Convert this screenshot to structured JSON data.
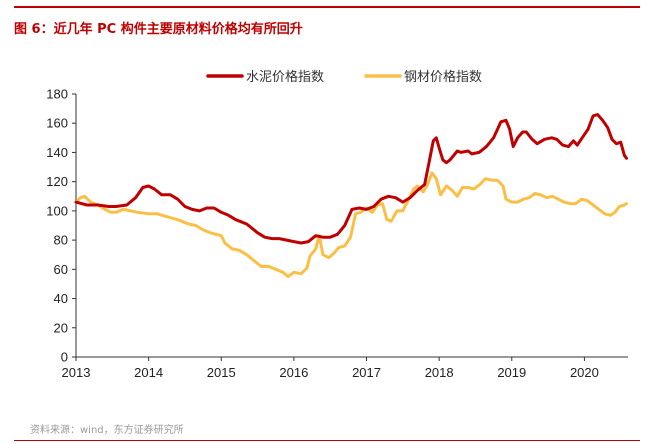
{
  "title": "图 6：近几年 PC 构件主要原材料价格均有所回升",
  "source": "资料来源：wind，东方证券研究所",
  "colors": {
    "accent": "#c00000",
    "cement": "#c00000",
    "steel": "#fbbf45",
    "axis": "#333333",
    "rule": "#c00000"
  },
  "chart_data": {
    "type": "line",
    "title": "图 6：近几年 PC 构件主要原材料价格均有所回升",
    "xlabel": "",
    "ylabel": "",
    "xlim": [
      2013,
      2020.6
    ],
    "ylim": [
      0,
      180
    ],
    "yticks": [
      0,
      20,
      40,
      60,
      80,
      100,
      120,
      140,
      160,
      180
    ],
    "xticks": [
      2013,
      2014,
      2015,
      2016,
      2017,
      2018,
      2019,
      2020
    ],
    "xtick_labels": [
      "2013",
      "2014",
      "2015",
      "2016",
      "2017",
      "2018",
      "2019",
      "2020"
    ],
    "legend_position": "top-center",
    "grid": false,
    "series": [
      {
        "name": "水泥价格指数",
        "key": "cement",
        "points": [
          [
            2013.0,
            106
          ],
          [
            2013.15,
            104
          ],
          [
            2013.3,
            104
          ],
          [
            2013.45,
            103
          ],
          [
            2013.55,
            103
          ],
          [
            2013.7,
            104
          ],
          [
            2013.82,
            109
          ],
          [
            2013.92,
            116
          ],
          [
            2014.0,
            117
          ],
          [
            2014.08,
            115
          ],
          [
            2014.18,
            111
          ],
          [
            2014.3,
            111
          ],
          [
            2014.4,
            108
          ],
          [
            2014.5,
            103
          ],
          [
            2014.6,
            101
          ],
          [
            2014.7,
            100
          ],
          [
            2014.8,
            102
          ],
          [
            2014.9,
            102
          ],
          [
            2015.0,
            99
          ],
          [
            2015.1,
            97
          ],
          [
            2015.2,
            94
          ],
          [
            2015.35,
            91
          ],
          [
            2015.5,
            85
          ],
          [
            2015.6,
            82
          ],
          [
            2015.7,
            81
          ],
          [
            2015.8,
            81
          ],
          [
            2015.9,
            80
          ],
          [
            2016.0,
            79
          ],
          [
            2016.1,
            78
          ],
          [
            2016.2,
            79
          ],
          [
            2016.3,
            83
          ],
          [
            2016.4,
            82
          ],
          [
            2016.5,
            82
          ],
          [
            2016.6,
            84
          ],
          [
            2016.7,
            90
          ],
          [
            2016.8,
            101
          ],
          [
            2016.9,
            102
          ],
          [
            2017.0,
            101
          ],
          [
            2017.1,
            103
          ],
          [
            2017.2,
            108
          ],
          [
            2017.3,
            110
          ],
          [
            2017.4,
            109
          ],
          [
            2017.5,
            106
          ],
          [
            2017.6,
            109
          ],
          [
            2017.7,
            114
          ],
          [
            2017.8,
            118
          ],
          [
            2017.86,
            133
          ],
          [
            2017.92,
            148
          ],
          [
            2017.96,
            150
          ],
          [
            2018.0,
            143
          ],
          [
            2018.05,
            135
          ],
          [
            2018.1,
            133
          ],
          [
            2018.15,
            135
          ],
          [
            2018.25,
            141
          ],
          [
            2018.3,
            140
          ],
          [
            2018.4,
            141
          ],
          [
            2018.45,
            139
          ],
          [
            2018.55,
            140
          ],
          [
            2018.65,
            144
          ],
          [
            2018.75,
            150
          ],
          [
            2018.85,
            161
          ],
          [
            2018.92,
            162
          ],
          [
            2018.97,
            156
          ],
          [
            2019.02,
            144
          ],
          [
            2019.08,
            150
          ],
          [
            2019.15,
            154
          ],
          [
            2019.2,
            154
          ],
          [
            2019.28,
            149
          ],
          [
            2019.35,
            146
          ],
          [
            2019.45,
            149
          ],
          [
            2019.55,
            150
          ],
          [
            2019.62,
            149
          ],
          [
            2019.7,
            145
          ],
          [
            2019.78,
            144
          ],
          [
            2019.85,
            148
          ],
          [
            2019.9,
            145
          ],
          [
            2019.97,
            150
          ],
          [
            2020.05,
            156
          ],
          [
            2020.12,
            165
          ],
          [
            2020.18,
            166
          ],
          [
            2020.25,
            162
          ],
          [
            2020.32,
            157
          ],
          [
            2020.38,
            149
          ],
          [
            2020.44,
            146
          ],
          [
            2020.5,
            147
          ],
          [
            2020.55,
            138
          ],
          [
            2020.58,
            136
          ]
        ]
      },
      {
        "name": "钢材价格指数",
        "key": "steel",
        "points": [
          [
            2013.0,
            106
          ],
          [
            2013.06,
            109
          ],
          [
            2013.12,
            110
          ],
          [
            2013.2,
            106
          ],
          [
            2013.3,
            104
          ],
          [
            2013.4,
            101
          ],
          [
            2013.48,
            99
          ],
          [
            2013.55,
            99
          ],
          [
            2013.65,
            101
          ],
          [
            2013.75,
            100
          ],
          [
            2013.85,
            99
          ],
          [
            2014.0,
            98
          ],
          [
            2014.12,
            98
          ],
          [
            2014.25,
            96
          ],
          [
            2014.4,
            94
          ],
          [
            2014.55,
            91
          ],
          [
            2014.65,
            90
          ],
          [
            2014.75,
            87
          ],
          [
            2014.85,
            85
          ],
          [
            2015.0,
            83
          ],
          [
            2015.05,
            78
          ],
          [
            2015.15,
            74
          ],
          [
            2015.25,
            73
          ],
          [
            2015.35,
            70
          ],
          [
            2015.45,
            66
          ],
          [
            2015.55,
            62
          ],
          [
            2015.65,
            62
          ],
          [
            2015.75,
            60
          ],
          [
            2015.85,
            58
          ],
          [
            2015.92,
            55
          ],
          [
            2016.0,
            58
          ],
          [
            2016.1,
            57
          ],
          [
            2016.18,
            61
          ],
          [
            2016.22,
            69
          ],
          [
            2016.3,
            74
          ],
          [
            2016.35,
            83
          ],
          [
            2016.4,
            70
          ],
          [
            2016.48,
            68
          ],
          [
            2016.55,
            71
          ],
          [
            2016.62,
            75
          ],
          [
            2016.7,
            76
          ],
          [
            2016.78,
            82
          ],
          [
            2016.85,
            98
          ],
          [
            2016.92,
            99
          ],
          [
            2017.0,
            102
          ],
          [
            2017.08,
            99
          ],
          [
            2017.15,
            104
          ],
          [
            2017.22,
            105
          ],
          [
            2017.28,
            94
          ],
          [
            2017.34,
            93
          ],
          [
            2017.42,
            100
          ],
          [
            2017.5,
            100
          ],
          [
            2017.58,
            108
          ],
          [
            2017.65,
            115
          ],
          [
            2017.7,
            117
          ],
          [
            2017.78,
            113
          ],
          [
            2017.84,
            118
          ],
          [
            2017.9,
            126
          ],
          [
            2017.96,
            122
          ],
          [
            2018.02,
            111
          ],
          [
            2018.1,
            117
          ],
          [
            2018.18,
            114
          ],
          [
            2018.25,
            110
          ],
          [
            2018.32,
            116
          ],
          [
            2018.4,
            116
          ],
          [
            2018.48,
            115
          ],
          [
            2018.56,
            118
          ],
          [
            2018.64,
            122
          ],
          [
            2018.72,
            121
          ],
          [
            2018.8,
            121
          ],
          [
            2018.88,
            117
          ],
          [
            2018.92,
            108
          ],
          [
            2019.0,
            106
          ],
          [
            2019.08,
            106
          ],
          [
            2019.16,
            108
          ],
          [
            2019.24,
            109
          ],
          [
            2019.32,
            112
          ],
          [
            2019.4,
            111
          ],
          [
            2019.48,
            109
          ],
          [
            2019.56,
            110
          ],
          [
            2019.64,
            108
          ],
          [
            2019.72,
            106
          ],
          [
            2019.8,
            105
          ],
          [
            2019.88,
            105
          ],
          [
            2019.96,
            108
          ],
          [
            2020.04,
            107
          ],
          [
            2020.12,
            104
          ],
          [
            2020.2,
            101
          ],
          [
            2020.28,
            98
          ],
          [
            2020.36,
            97
          ],
          [
            2020.42,
            99
          ],
          [
            2020.48,
            103
          ],
          [
            2020.55,
            104
          ],
          [
            2020.58,
            105
          ]
        ]
      }
    ]
  }
}
